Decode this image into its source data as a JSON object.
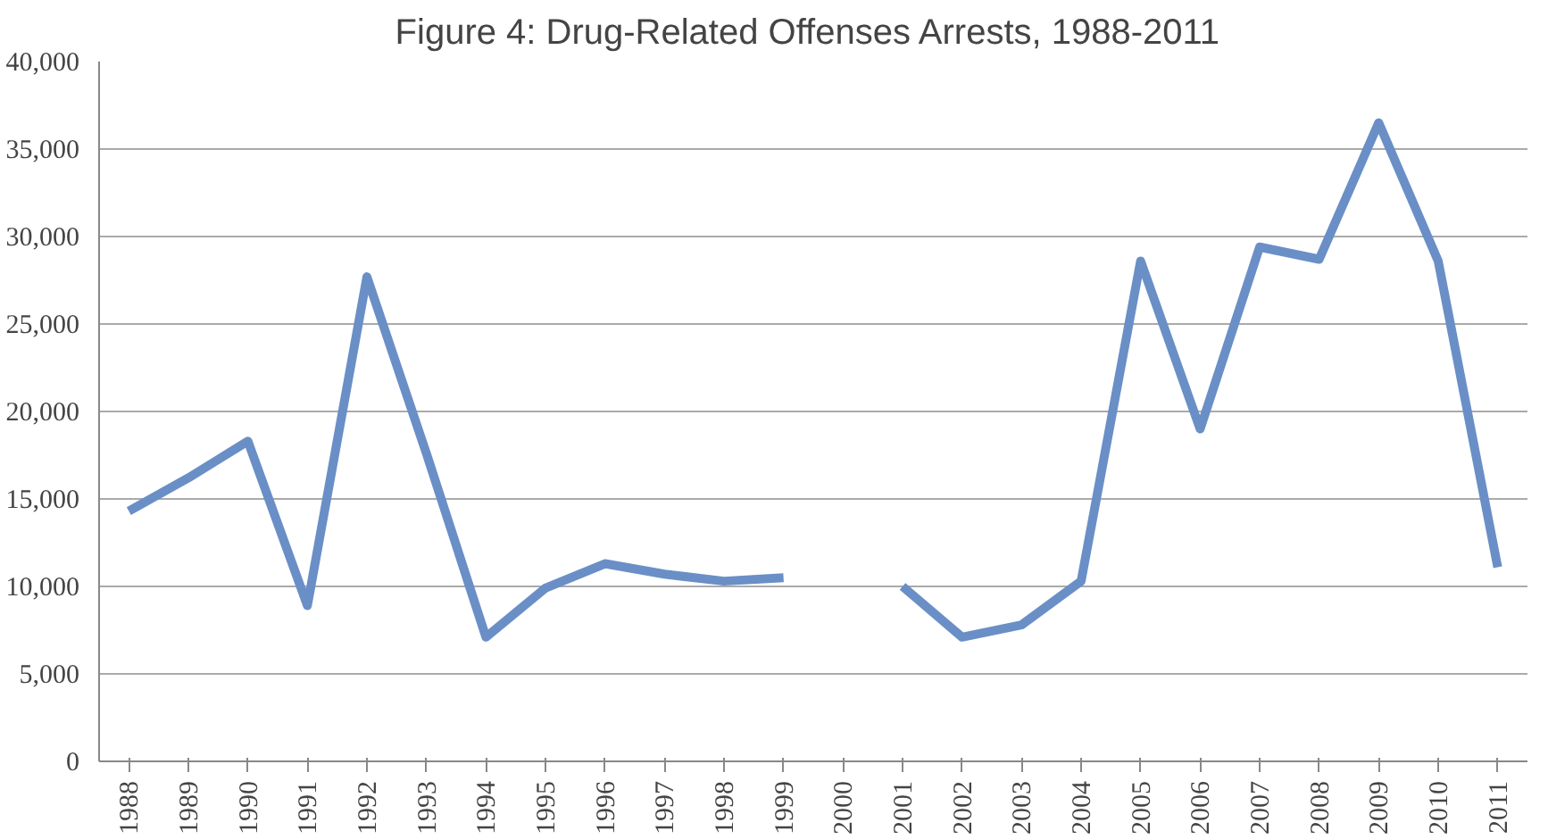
{
  "chart_data": {
    "type": "line",
    "title": "Figure 4:  Drug-Related Offenses Arrests, 1988-2011",
    "categories": [
      "1988",
      "1989",
      "1990",
      "1991",
      "1992",
      "1993",
      "1994",
      "1995",
      "1996",
      "1997",
      "1998",
      "1999",
      "2000",
      "2001",
      "2002",
      "2003",
      "2004",
      "2005",
      "2006",
      "2007",
      "2008",
      "2009",
      "2010",
      "2011"
    ],
    "series": [
      {
        "color": "#6a8fc7",
        "values": [
          14300,
          16200,
          18300,
          8900,
          27700,
          17600,
          7100,
          9900,
          11300,
          10700,
          10300,
          10500,
          null,
          10000,
          7100,
          7800,
          10300,
          28600,
          19000,
          29400,
          28700,
          36500,
          28600,
          11100
        ]
      }
    ],
    "ylim": [
      0,
      40000
    ],
    "yticks": [
      {
        "value": 0,
        "label": "0"
      },
      {
        "value": 5000,
        "label": "5,000"
      },
      {
        "value": 10000,
        "label": "10,000"
      },
      {
        "value": 15000,
        "label": "15,000"
      },
      {
        "value": 20000,
        "label": "20,000"
      },
      {
        "value": 25000,
        "label": "25,000"
      },
      {
        "value": 30000,
        "label": "30,000"
      },
      {
        "value": 35000,
        "label": "35,000"
      },
      {
        "value": 40000,
        "label": "40,000"
      }
    ],
    "grid": "y",
    "marker": "none",
    "line_style": "solid"
  }
}
